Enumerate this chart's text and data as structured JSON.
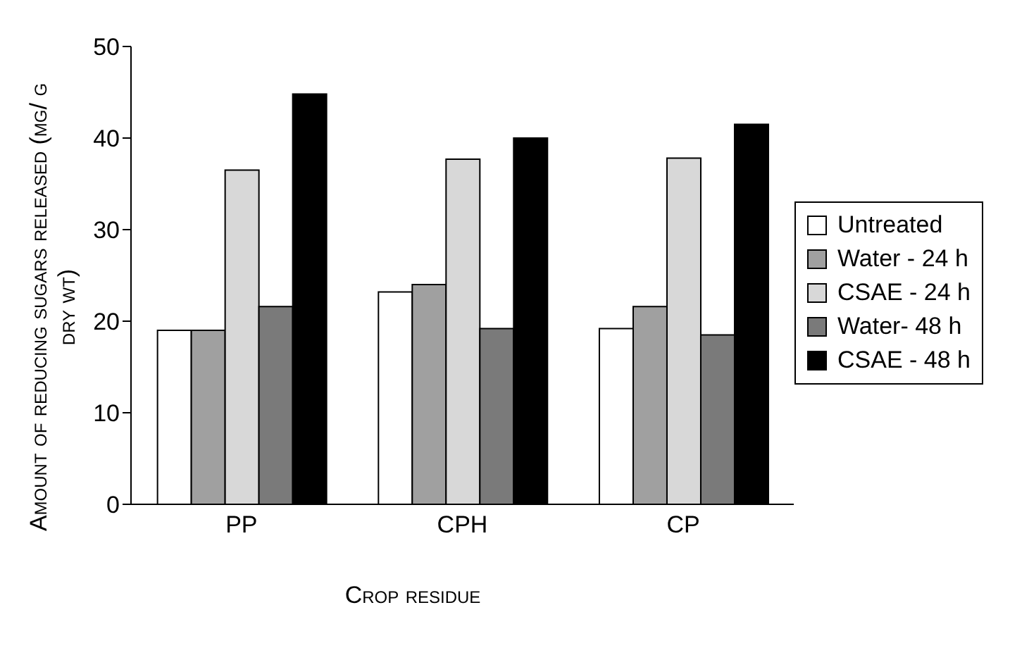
{
  "chart_data": {
    "type": "bar",
    "xlabel": "Crop residue",
    "ylabel": "Amount of reducing sugars released (mg/ g dry wt)",
    "categories": [
      "PP",
      "CPH",
      "CP"
    ],
    "series": [
      {
        "name": "Untreated",
        "color": "#ffffff",
        "values": [
          19,
          23.2,
          19.2
        ]
      },
      {
        "name": "Water - 24 h",
        "color": "#a0a0a0",
        "values": [
          19,
          24,
          21.6
        ]
      },
      {
        "name": "CSAE - 24 h",
        "color": "#d8d8d8",
        "values": [
          36.5,
          37.7,
          37.8
        ]
      },
      {
        "name": "Water- 48 h",
        "color": "#7a7a7a",
        "values": [
          21.6,
          19.2,
          18.5
        ]
      },
      {
        "name": "CSAE - 48 h",
        "color": "#000000",
        "values": [
          44.8,
          40,
          41.5
        ]
      }
    ],
    "ylim": [
      0,
      50
    ],
    "yticks": [
      0,
      10,
      20,
      30,
      40,
      50
    ],
    "grid": false,
    "legend": "right"
  }
}
